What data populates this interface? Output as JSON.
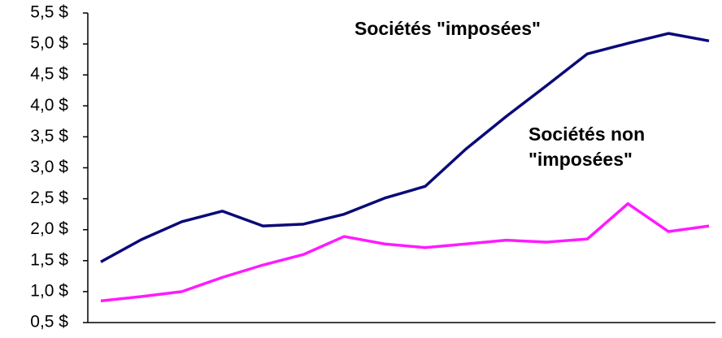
{
  "chart_data": {
    "type": "line",
    "categories": [
      null,
      null,
      null,
      null,
      null,
      null,
      null,
      null,
      null,
      null,
      null,
      null,
      null,
      null,
      null,
      null
    ],
    "series": [
      {
        "name": "Sociétés \"imposées\"",
        "color": "#0a0a78",
        "values": [
          1.48,
          1.84,
          2.13,
          2.3,
          2.06,
          2.09,
          2.25,
          2.51,
          2.7,
          3.3,
          3.83,
          4.33,
          4.84,
          5.01,
          5.17,
          5.05
        ]
      },
      {
        "name": "Sociétés non \"imposées\"",
        "color": "#ff1aff",
        "values": [
          0.85,
          0.92,
          1.0,
          1.23,
          1.43,
          1.6,
          1.89,
          1.77,
          1.71,
          1.77,
          1.83,
          1.8,
          1.85,
          2.42,
          1.97,
          2.06
        ]
      }
    ],
    "ylim": [
      0.5,
      5.5
    ],
    "yticks": [
      {
        "value": 0.5,
        "label": "0,5 $"
      },
      {
        "value": 1.0,
        "label": "1,0 $"
      },
      {
        "value": 1.5,
        "label": "1,5 $"
      },
      {
        "value": 2.0,
        "label": "2,0 $"
      },
      {
        "value": 2.5,
        "label": "2,5 $"
      },
      {
        "value": 3.0,
        "label": "3,0 $"
      },
      {
        "value": 3.5,
        "label": "3,5 $"
      },
      {
        "value": 4.0,
        "label": "4,0 $"
      },
      {
        "value": 4.5,
        "label": "4,5 $"
      },
      {
        "value": 5.0,
        "label": "5,0 $"
      },
      {
        "value": 5.5,
        "label": "5,5 $"
      }
    ],
    "grid": false
  }
}
